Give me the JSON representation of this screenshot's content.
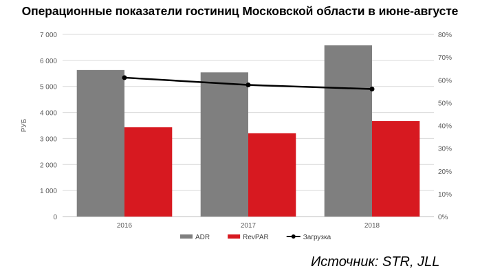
{
  "title": "Операционные показатели гостиниц Московской области в июне-августе",
  "source": "Источник: STR, JLL",
  "chart_data": {
    "type": "bar",
    "categories": [
      "2016",
      "2017",
      "2018"
    ],
    "series": [
      {
        "name": "ADR",
        "kind": "bar",
        "axis": "left",
        "color": "#7f7f7f",
        "values": [
          5630,
          5540,
          6580
        ]
      },
      {
        "name": "RevPAR",
        "kind": "bar",
        "axis": "left",
        "color": "#d71920",
        "values": [
          3430,
          3200,
          3670
        ]
      },
      {
        "name": "Загрузка",
        "kind": "line",
        "axis": "right",
        "color": "#000000",
        "values": [
          0.61,
          0.578,
          0.56
        ]
      }
    ],
    "ylabel": "РУБ",
    "ylim": [
      0,
      7000
    ],
    "yticks": [
      0,
      1000,
      2000,
      3000,
      4000,
      5000,
      6000,
      7000
    ],
    "ytick_labels": [
      "0",
      "1 000",
      "2 000",
      "3 000",
      "4 000",
      "5 000",
      "6 000",
      "7 000"
    ],
    "y2lim": [
      0,
      0.8
    ],
    "y2ticks": [
      0,
      0.1,
      0.2,
      0.3,
      0.4,
      0.5,
      0.6,
      0.7,
      0.8
    ],
    "y2tick_labels": [
      "0%",
      "10%",
      "20%",
      "30%",
      "40%",
      "50%",
      "60%",
      "70%",
      "80%"
    ],
    "grid": true,
    "legend": "bottom"
  }
}
